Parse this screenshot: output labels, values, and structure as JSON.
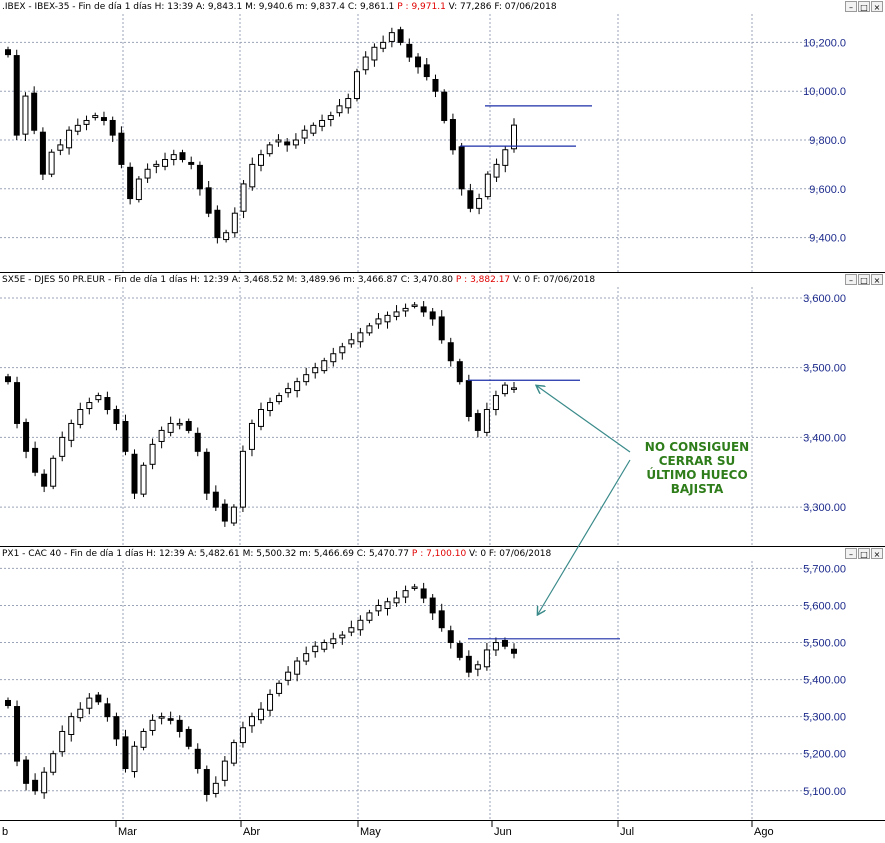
{
  "colors": {
    "up_candle": "#ffffff",
    "down_candle": "#000000",
    "grid": "#9aa3b8",
    "axis_labels": "#1c2a8c",
    "level_lines": "#1b2fa8",
    "arrow": "#3a8a8a",
    "annotation": "#2e7d1a",
    "header_red": "#e00000"
  },
  "window_buttons": {
    "minimize": "–",
    "maximize": "□",
    "close": "×"
  },
  "annotation": {
    "line1": "NO CONSIGUEN",
    "line2": "CERRAR SU",
    "line3": "ÚLTIMO HUECO",
    "line4": "BAJISTA"
  },
  "x_axis": {
    "labels": [
      "b",
      "Mar",
      "Abr",
      "May",
      "Jun",
      "Jul",
      "Ago"
    ]
  },
  "chart_data": [
    {
      "type": "candlestick",
      "header": {
        "main": ".IBEX - IBEX-35 - Fin de día 1 días  H: 13:39  A: 9,843.1  M: 9,940.6  m: 9,837.4  C: 9,861.1 ",
        "red": " P : 9,971.1 ",
        "tail": " V: 77,286  F: 07/06/2018"
      },
      "y_ticks": [
        "10,200.0",
        "10,000.0",
        "9,800.0",
        "9,600.0",
        "9,400.0"
      ],
      "ylim": [
        9300,
        10300
      ],
      "grid": true,
      "levels": [
        9940,
        9775
      ],
      "series_close": [
        10150,
        9820,
        9980,
        9840,
        9660,
        9750,
        9780,
        9840,
        9860,
        9880,
        9900,
        9880,
        9820,
        9700,
        9560,
        9640,
        9680,
        9700,
        9720,
        9740,
        9720,
        9700,
        9600,
        9500,
        9400,
        9420,
        9500,
        9620,
        9700,
        9740,
        9780,
        9800,
        9780,
        9800,
        9840,
        9860,
        9880,
        9900,
        9940,
        9970,
        10080,
        10140,
        10180,
        10200,
        10240,
        10200,
        10140,
        10100,
        10060,
        10000,
        9880,
        9760,
        9600,
        9520,
        9560,
        9660,
        9700,
        9760,
        9861
      ]
    },
    {
      "type": "candlestick",
      "header": {
        "main": "SX5E - DJES 50 PR.EUR - Fin de día 1 días  H: 12:39  A: 3,468.52  M: 3,489.96  m: 3,466.87  C: 3,470.80 ",
        "red": " P : 3,882.17 ",
        "tail": " V: 0  F: 07/06/2018"
      },
      "y_ticks": [
        "3,600.00",
        "3,500.00",
        "3,400.00",
        "3,300.00"
      ],
      "ylim": [
        3260,
        3610
      ],
      "grid": true,
      "levels": [
        3482
      ],
      "series_close": [
        3480,
        3420,
        3380,
        3350,
        3330,
        3370,
        3400,
        3420,
        3440,
        3450,
        3460,
        3440,
        3420,
        3380,
        3320,
        3360,
        3390,
        3410,
        3420,
        3420,
        3410,
        3380,
        3320,
        3300,
        3280,
        3300,
        3380,
        3420,
        3440,
        3450,
        3460,
        3470,
        3480,
        3490,
        3500,
        3510,
        3520,
        3530,
        3540,
        3550,
        3560,
        3570,
        3575,
        3580,
        3585,
        3590,
        3580,
        3570,
        3540,
        3510,
        3480,
        3430,
        3410,
        3440,
        3460,
        3475,
        3471
      ]
    },
    {
      "type": "candlestick",
      "header": {
        "main": "PX1 - CAC 40 - Fin de día 1 días  H: 12:39  A: 5,482.61  M: 5,500.32  m: 5,466.69  C: 5,470.77 ",
        "red": " P : 7,100.10 ",
        "tail": " V: 0  F: 07/06/2018"
      },
      "y_ticks": [
        "5,700.00",
        "5,600.00",
        "5,500.00",
        "5,400.00",
        "5,300.00",
        "5,200.00",
        "5,100.00"
      ],
      "ylim": [
        5040,
        5720
      ],
      "grid": true,
      "levels": [
        5510
      ],
      "series_close": [
        5330,
        5180,
        5120,
        5100,
        5150,
        5200,
        5260,
        5300,
        5320,
        5350,
        5340,
        5300,
        5240,
        5160,
        5220,
        5260,
        5290,
        5300,
        5290,
        5260,
        5220,
        5160,
        5090,
        5120,
        5180,
        5230,
        5270,
        5300,
        5320,
        5360,
        5390,
        5420,
        5450,
        5470,
        5490,
        5500,
        5510,
        5520,
        5540,
        5560,
        5580,
        5600,
        5610,
        5620,
        5640,
        5650,
        5620,
        5580,
        5540,
        5500,
        5460,
        5420,
        5440,
        5480,
        5500,
        5490,
        5471
      ]
    }
  ]
}
